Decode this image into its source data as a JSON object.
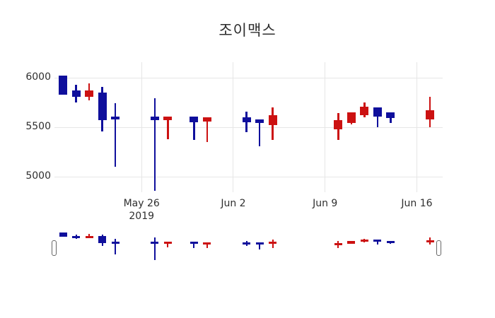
{
  "chart_data": {
    "type": "candlestick",
    "title": "조이맥스",
    "up_color": "#cc1111",
    "down_color": "#0f0f9c",
    "grid_color": "#e6e6e6",
    "text_color": "#2f2f2f",
    "background": "#ffffff",
    "legend": "none",
    "grid": "on",
    "rangeslider": "on",
    "ylabel": "",
    "xlabel": "",
    "ylim": [
      4840,
      6160
    ],
    "y_ticks": [
      6000,
      5500,
      5000
    ],
    "x_ticks": [
      {
        "label": "May 26",
        "sublabel": "2019",
        "day": 6
      },
      {
        "label": "Jun 2",
        "sublabel": "",
        "day": 13
      },
      {
        "label": "Jun 9",
        "sublabel": "",
        "day": 20
      },
      {
        "label": "Jun 16",
        "sublabel": "",
        "day": 27
      }
    ],
    "candles": [
      {
        "day": 0,
        "open": 6020,
        "high": 6020,
        "low": 5830,
        "close": 5830
      },
      {
        "day": 1,
        "open": 5870,
        "high": 5930,
        "low": 5750,
        "close": 5810
      },
      {
        "day": 2,
        "open": 5810,
        "high": 5940,
        "low": 5770,
        "close": 5870
      },
      {
        "day": 3,
        "open": 5850,
        "high": 5910,
        "low": 5460,
        "close": 5570
      },
      {
        "day": 4,
        "open": 5610,
        "high": 5740,
        "low": 5100,
        "close": 5580
      },
      {
        "day": 7,
        "open": 5610,
        "high": 5790,
        "low": 4860,
        "close": 5570
      },
      {
        "day": 8,
        "open": 5570,
        "high": 5610,
        "low": 5380,
        "close": 5610
      },
      {
        "day": 10,
        "open": 5610,
        "high": 5610,
        "low": 5370,
        "close": 5550
      },
      {
        "day": 11,
        "open": 5560,
        "high": 5600,
        "low": 5350,
        "close": 5600
      },
      {
        "day": 14,
        "open": 5600,
        "high": 5660,
        "low": 5450,
        "close": 5550
      },
      {
        "day": 15,
        "open": 5580,
        "high": 5580,
        "low": 5310,
        "close": 5540
      },
      {
        "day": 16,
        "open": 5520,
        "high": 5700,
        "low": 5370,
        "close": 5620
      },
      {
        "day": 21,
        "open": 5480,
        "high": 5640,
        "low": 5370,
        "close": 5570
      },
      {
        "day": 22,
        "open": 5540,
        "high": 5650,
        "low": 5530,
        "close": 5650
      },
      {
        "day": 23,
        "open": 5620,
        "high": 5750,
        "low": 5600,
        "close": 5710
      },
      {
        "day": 24,
        "open": 5700,
        "high": 5700,
        "low": 5500,
        "close": 5610
      },
      {
        "day": 25,
        "open": 5650,
        "high": 5650,
        "low": 5540,
        "close": 5590
      },
      {
        "day": 28,
        "open": 5580,
        "high": 5810,
        "low": 5500,
        "close": 5670
      }
    ]
  }
}
